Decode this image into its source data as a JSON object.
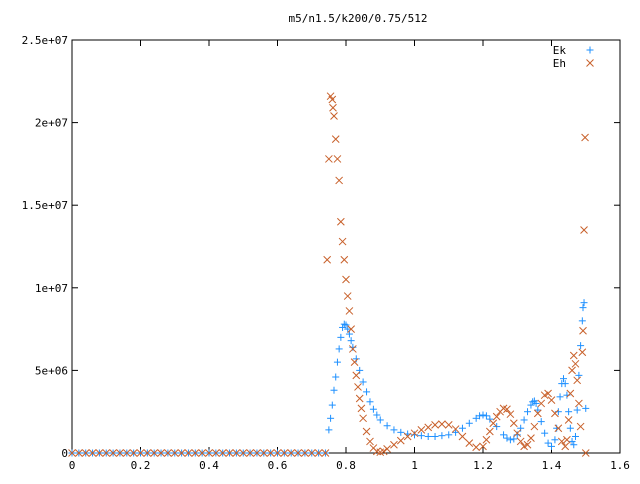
{
  "chart_data": {
    "type": "scatter",
    "title": "m5/n1.5/k200/0.75/512",
    "xlabel": "",
    "ylabel": "",
    "xlim": [
      0,
      1.6
    ],
    "ylim": [
      0,
      25000000
    ],
    "x_ticks": [
      {
        "value": 0,
        "label": "0"
      },
      {
        "value": 0.2,
        "label": "0.2"
      },
      {
        "value": 0.4,
        "label": "0.4"
      },
      {
        "value": 0.6,
        "label": "0.6"
      },
      {
        "value": 0.8,
        "label": "0.8"
      },
      {
        "value": 1.0,
        "label": "1"
      },
      {
        "value": 1.2,
        "label": "1.2"
      },
      {
        "value": 1.4,
        "label": "1.4"
      },
      {
        "value": 1.6,
        "label": "1.6"
      }
    ],
    "y_ticks": [
      {
        "value": 0,
        "label": "0"
      },
      {
        "value": 5000000,
        "label": "5e+06"
      },
      {
        "value": 10000000,
        "label": "1e+07"
      },
      {
        "value": 15000000,
        "label": "1.5e+07"
      },
      {
        "value": 20000000,
        "label": "2e+07"
      },
      {
        "value": 25000000,
        "label": "2.5e+07"
      }
    ],
    "grid": false,
    "legend_position": "top-right",
    "series": [
      {
        "name": "Ek",
        "marker": "plus",
        "color": "#1e90ff",
        "points": [
          [
            0.0,
            0
          ],
          [
            0.02,
            0
          ],
          [
            0.04,
            0
          ],
          [
            0.06,
            0
          ],
          [
            0.08,
            0
          ],
          [
            0.1,
            0
          ],
          [
            0.12,
            0
          ],
          [
            0.14,
            0
          ],
          [
            0.16,
            0
          ],
          [
            0.18,
            0
          ],
          [
            0.2,
            0
          ],
          [
            0.22,
            0
          ],
          [
            0.24,
            0
          ],
          [
            0.26,
            0
          ],
          [
            0.28,
            0
          ],
          [
            0.3,
            0
          ],
          [
            0.32,
            0
          ],
          [
            0.34,
            0
          ],
          [
            0.36,
            0
          ],
          [
            0.38,
            0
          ],
          [
            0.4,
            0
          ],
          [
            0.42,
            0
          ],
          [
            0.44,
            0
          ],
          [
            0.46,
            0
          ],
          [
            0.48,
            0
          ],
          [
            0.5,
            0
          ],
          [
            0.52,
            0
          ],
          [
            0.54,
            0
          ],
          [
            0.56,
            0
          ],
          [
            0.58,
            0
          ],
          [
            0.6,
            0
          ],
          [
            0.62,
            0
          ],
          [
            0.64,
            0
          ],
          [
            0.66,
            0
          ],
          [
            0.68,
            0
          ],
          [
            0.7,
            0
          ],
          [
            0.72,
            0
          ],
          [
            0.74,
            0
          ],
          [
            0.75,
            1400000
          ],
          [
            0.755,
            2100000
          ],
          [
            0.76,
            2900000
          ],
          [
            0.765,
            3800000
          ],
          [
            0.77,
            4600000
          ],
          [
            0.775,
            5500000
          ],
          [
            0.78,
            6300000
          ],
          [
            0.785,
            7000000
          ],
          [
            0.79,
            7600000
          ],
          [
            0.795,
            7800000
          ],
          [
            0.8,
            7750000
          ],
          [
            0.805,
            7500000
          ],
          [
            0.81,
            7200000
          ],
          [
            0.815,
            6800000
          ],
          [
            0.82,
            6400000
          ],
          [
            0.83,
            5700000
          ],
          [
            0.84,
            5000000
          ],
          [
            0.85,
            4300000
          ],
          [
            0.86,
            3700000
          ],
          [
            0.87,
            3100000
          ],
          [
            0.88,
            2650000
          ],
          [
            0.89,
            2300000
          ],
          [
            0.9,
            2000000
          ],
          [
            0.92,
            1650000
          ],
          [
            0.94,
            1400000
          ],
          [
            0.96,
            1250000
          ],
          [
            0.98,
            1150000
          ],
          [
            1.0,
            1100000
          ],
          [
            1.02,
            1050000
          ],
          [
            1.04,
            1000000
          ],
          [
            1.06,
            1000000
          ],
          [
            1.08,
            1050000
          ],
          [
            1.1,
            1100000
          ],
          [
            1.12,
            1250000
          ],
          [
            1.14,
            1500000
          ],
          [
            1.16,
            1800000
          ],
          [
            1.18,
            2100000
          ],
          [
            1.19,
            2250000
          ],
          [
            1.2,
            2300000
          ],
          [
            1.21,
            2250000
          ],
          [
            1.22,
            2050000
          ],
          [
            1.24,
            1600000
          ],
          [
            1.26,
            1100000
          ],
          [
            1.27,
            900000
          ],
          [
            1.28,
            800000
          ],
          [
            1.29,
            850000
          ],
          [
            1.3,
            1100000
          ],
          [
            1.31,
            1500000
          ],
          [
            1.32,
            2000000
          ],
          [
            1.33,
            2500000
          ],
          [
            1.34,
            2900000
          ],
          [
            1.345,
            3100000
          ],
          [
            1.35,
            3150000
          ],
          [
            1.355,
            3000000
          ],
          [
            1.36,
            2600000
          ],
          [
            1.37,
            1900000
          ],
          [
            1.38,
            1200000
          ],
          [
            1.39,
            600000
          ],
          [
            1.4,
            400000
          ],
          [
            1.41,
            800000
          ],
          [
            1.415,
            1500000
          ],
          [
            1.42,
            2500000
          ],
          [
            1.425,
            3400000
          ],
          [
            1.43,
            4200000
          ],
          [
            1.435,
            4500000
          ],
          [
            1.44,
            4200000
          ],
          [
            1.445,
            3500000
          ],
          [
            1.45,
            2500000
          ],
          [
            1.455,
            1500000
          ],
          [
            1.46,
            700000
          ],
          [
            1.465,
            500000
          ],
          [
            1.47,
            1000000
          ],
          [
            1.475,
            2600000
          ],
          [
            1.48,
            4700000
          ],
          [
            1.485,
            6500000
          ],
          [
            1.49,
            8000000
          ],
          [
            1.492,
            8800000
          ],
          [
            1.495,
            9100000
          ],
          [
            1.5,
            2700000
          ]
        ]
      },
      {
        "name": "Eh",
        "marker": "cross",
        "color": "#c8602a",
        "points": [
          [
            0.0,
            0
          ],
          [
            0.02,
            0
          ],
          [
            0.04,
            0
          ],
          [
            0.06,
            0
          ],
          [
            0.08,
            0
          ],
          [
            0.1,
            0
          ],
          [
            0.12,
            0
          ],
          [
            0.14,
            0
          ],
          [
            0.16,
            0
          ],
          [
            0.18,
            0
          ],
          [
            0.2,
            0
          ],
          [
            0.22,
            0
          ],
          [
            0.24,
            0
          ],
          [
            0.26,
            0
          ],
          [
            0.28,
            0
          ],
          [
            0.3,
            0
          ],
          [
            0.32,
            0
          ],
          [
            0.34,
            0
          ],
          [
            0.36,
            0
          ],
          [
            0.38,
            0
          ],
          [
            0.4,
            0
          ],
          [
            0.42,
            0
          ],
          [
            0.44,
            0
          ],
          [
            0.46,
            0
          ],
          [
            0.48,
            0
          ],
          [
            0.5,
            0
          ],
          [
            0.52,
            0
          ],
          [
            0.54,
            0
          ],
          [
            0.56,
            0
          ],
          [
            0.58,
            0
          ],
          [
            0.6,
            0
          ],
          [
            0.62,
            0
          ],
          [
            0.64,
            0
          ],
          [
            0.66,
            0
          ],
          [
            0.68,
            0
          ],
          [
            0.7,
            0
          ],
          [
            0.72,
            0
          ],
          [
            0.74,
            0
          ],
          [
            0.745,
            11700000
          ],
          [
            0.75,
            17800000
          ],
          [
            0.755,
            21600000
          ],
          [
            0.76,
            21400000
          ],
          [
            0.762,
            20900000
          ],
          [
            0.765,
            20400000
          ],
          [
            0.77,
            19000000
          ],
          [
            0.775,
            17800000
          ],
          [
            0.78,
            16500000
          ],
          [
            0.785,
            14000000
          ],
          [
            0.79,
            12800000
          ],
          [
            0.795,
            11700000
          ],
          [
            0.8,
            10500000
          ],
          [
            0.805,
            9500000
          ],
          [
            0.81,
            8600000
          ],
          [
            0.815,
            7500000
          ],
          [
            0.82,
            6300000
          ],
          [
            0.825,
            5500000
          ],
          [
            0.83,
            4700000
          ],
          [
            0.835,
            4000000
          ],
          [
            0.84,
            3300000
          ],
          [
            0.845,
            2700000
          ],
          [
            0.85,
            2100000
          ],
          [
            0.86,
            1300000
          ],
          [
            0.87,
            700000
          ],
          [
            0.88,
            300000
          ],
          [
            0.89,
            100000
          ],
          [
            0.9,
            50000
          ],
          [
            0.91,
            100000
          ],
          [
            0.92,
            250000
          ],
          [
            0.94,
            500000
          ],
          [
            0.96,
            750000
          ],
          [
            0.98,
            1000000
          ],
          [
            1.0,
            1200000
          ],
          [
            1.02,
            1400000
          ],
          [
            1.04,
            1550000
          ],
          [
            1.06,
            1700000
          ],
          [
            1.08,
            1750000
          ],
          [
            1.1,
            1700000
          ],
          [
            1.12,
            1450000
          ],
          [
            1.14,
            1000000
          ],
          [
            1.16,
            600000
          ],
          [
            1.18,
            350000
          ],
          [
            1.2,
            400000
          ],
          [
            1.21,
            800000
          ],
          [
            1.22,
            1300000
          ],
          [
            1.23,
            1800000
          ],
          [
            1.24,
            2200000
          ],
          [
            1.25,
            2500000
          ],
          [
            1.26,
            2700000
          ],
          [
            1.27,
            2650000
          ],
          [
            1.28,
            2350000
          ],
          [
            1.29,
            1800000
          ],
          [
            1.3,
            1200000
          ],
          [
            1.31,
            700000
          ],
          [
            1.32,
            400000
          ],
          [
            1.33,
            500000
          ],
          [
            1.34,
            900000
          ],
          [
            1.35,
            1600000
          ],
          [
            1.36,
            2400000
          ],
          [
            1.37,
            3000000
          ],
          [
            1.38,
            3500000
          ],
          [
            1.39,
            3600000
          ],
          [
            1.4,
            3200000
          ],
          [
            1.41,
            2400000
          ],
          [
            1.42,
            1500000
          ],
          [
            1.43,
            700000
          ],
          [
            1.44,
            400000
          ],
          [
            1.445,
            800000
          ],
          [
            1.45,
            2000000
          ],
          [
            1.455,
            3600000
          ],
          [
            1.46,
            5000000
          ],
          [
            1.465,
            5900000
          ],
          [
            1.47,
            5400000
          ],
          [
            1.475,
            4400000
          ],
          [
            1.48,
            3000000
          ],
          [
            1.485,
            1600000
          ],
          [
            1.49,
            6100000
          ],
          [
            1.492,
            7400000
          ],
          [
            1.495,
            13500000
          ],
          [
            1.498,
            19100000
          ],
          [
            1.5,
            0
          ]
        ]
      }
    ]
  }
}
